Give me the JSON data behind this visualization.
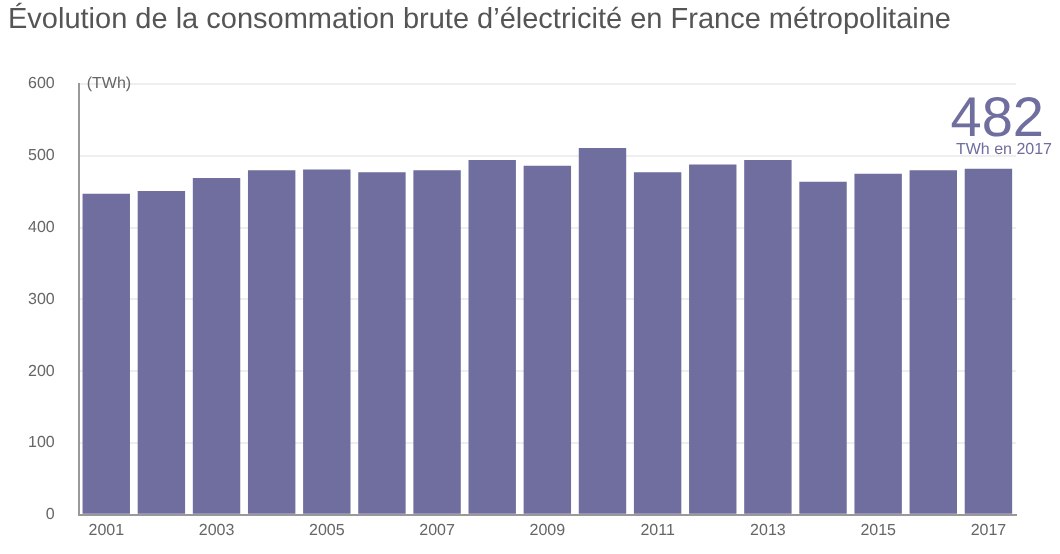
{
  "chart_data": {
    "type": "bar",
    "title": "Évolution de la consommation brute d’électricité en France métropolitaine",
    "ylabel": "(TWh)",
    "categories": [
      "2001",
      null,
      "2003",
      null,
      "2005",
      null,
      "2007",
      null,
      "2009",
      null,
      "2011",
      null,
      "2013",
      null,
      "2015",
      null,
      "2017"
    ],
    "values": [
      447,
      451,
      469,
      480,
      481,
      477,
      480,
      494,
      486,
      511,
      477,
      488,
      494,
      464,
      475,
      480,
      482
    ],
    "color": "#6f6e9e",
    "ylim": [
      0,
      600
    ],
    "yticks": [
      0,
      100,
      200,
      300,
      400,
      500,
      600
    ],
    "grid": "y",
    "legend": false,
    "annotations": [
      "482",
      "TWh en 2017"
    ]
  }
}
